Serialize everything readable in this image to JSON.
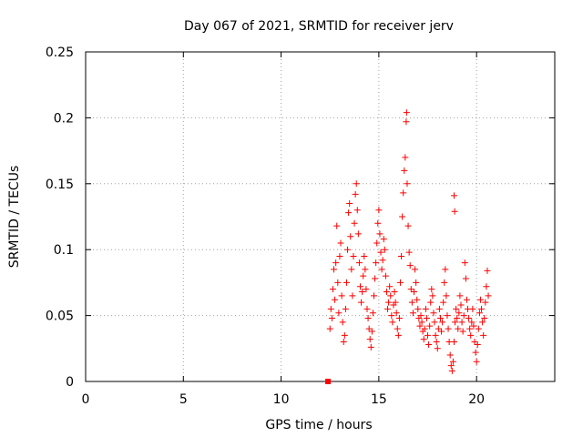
{
  "chart_data": {
    "type": "scatter",
    "title": "Day 067 of 2021, SRMTID for receiver jerv",
    "xlabel": "GPS time / hours",
    "ylabel": "SRMTID / TECUs",
    "xlim": [
      0,
      24
    ],
    "ylim": [
      0,
      0.25
    ],
    "xticks": [
      0,
      5,
      10,
      15,
      20
    ],
    "xtick_labels": [
      "0",
      "5",
      "10",
      "15",
      "20"
    ],
    "yticks": [
      0,
      0.05,
      0.1,
      0.15,
      0.2,
      0.25
    ],
    "ytick_labels": [
      "0",
      "0.05",
      "0.1",
      "0.15",
      "0.2",
      "0.25"
    ],
    "grid": true,
    "marker": "plus",
    "color": "#ff0000",
    "series": [
      {
        "marker": "plus",
        "points": [
          [
            12.5,
            0.04
          ],
          [
            12.55,
            0.055
          ],
          [
            12.6,
            0.048
          ],
          [
            12.65,
            0.07
          ],
          [
            12.7,
            0.085
          ],
          [
            12.75,
            0.062
          ],
          [
            12.8,
            0.09
          ],
          [
            12.85,
            0.118
          ],
          [
            12.9,
            0.075
          ],
          [
            12.95,
            0.052
          ],
          [
            13.0,
            0.095
          ],
          [
            13.05,
            0.105
          ],
          [
            13.1,
            0.065
          ],
          [
            13.15,
            0.045
          ],
          [
            13.2,
            0.03
          ],
          [
            13.25,
            0.035
          ],
          [
            13.3,
            0.055
          ],
          [
            13.35,
            0.075
          ],
          [
            13.4,
            0.1
          ],
          [
            13.45,
            0.128
          ],
          [
            13.5,
            0.135
          ],
          [
            13.55,
            0.11
          ],
          [
            13.6,
            0.085
          ],
          [
            13.65,
            0.065
          ],
          [
            13.7,
            0.095
          ],
          [
            13.75,
            0.12
          ],
          [
            13.8,
            0.142
          ],
          [
            13.85,
            0.15
          ],
          [
            13.9,
            0.13
          ],
          [
            13.95,
            0.112
          ],
          [
            14.0,
            0.09
          ],
          [
            14.05,
            0.072
          ],
          [
            14.1,
            0.06
          ],
          [
            14.15,
            0.068
          ],
          [
            14.2,
            0.08
          ],
          [
            14.25,
            0.095
          ],
          [
            14.3,
            0.085
          ],
          [
            14.35,
            0.07
          ],
          [
            14.4,
            0.055
          ],
          [
            14.45,
            0.048
          ],
          [
            14.5,
            0.04
          ],
          [
            14.55,
            0.032
          ],
          [
            14.6,
            0.026
          ],
          [
            14.65,
            0.038
          ],
          [
            14.7,
            0.052
          ],
          [
            14.75,
            0.065
          ],
          [
            14.8,
            0.078
          ],
          [
            14.85,
            0.09
          ],
          [
            14.9,
            0.105
          ],
          [
            14.95,
            0.12
          ],
          [
            15.0,
            0.13
          ],
          [
            15.05,
            0.112
          ],
          [
            15.1,
            0.098
          ],
          [
            15.15,
            0.085
          ],
          [
            15.2,
            0.092
          ],
          [
            15.25,
            0.108
          ],
          [
            15.3,
            0.1
          ],
          [
            15.35,
            0.08
          ],
          [
            15.4,
            0.068
          ],
          [
            15.45,
            0.055
          ],
          [
            15.5,
            0.06
          ],
          [
            15.55,
            0.072
          ],
          [
            15.6,
            0.065
          ],
          [
            15.65,
            0.05
          ],
          [
            15.7,
            0.045
          ],
          [
            15.75,
            0.058
          ],
          [
            15.8,
            0.068
          ],
          [
            15.85,
            0.06
          ],
          [
            15.9,
            0.052
          ],
          [
            15.95,
            0.04
          ],
          [
            16.0,
            0.035
          ],
          [
            16.05,
            0.048
          ],
          [
            16.1,
            0.075
          ],
          [
            16.15,
            0.095
          ],
          [
            16.2,
            0.125
          ],
          [
            16.25,
            0.143
          ],
          [
            16.3,
            0.16
          ],
          [
            16.35,
            0.17
          ],
          [
            16.4,
            0.197
          ],
          [
            16.42,
            0.204
          ],
          [
            16.45,
            0.15
          ],
          [
            16.5,
            0.118
          ],
          [
            16.55,
            0.098
          ],
          [
            16.6,
            0.088
          ],
          [
            16.65,
            0.07
          ],
          [
            16.7,
            0.06
          ],
          [
            16.75,
            0.052
          ],
          [
            16.8,
            0.068
          ],
          [
            16.85,
            0.085
          ],
          [
            16.9,
            0.075
          ],
          [
            16.95,
            0.062
          ],
          [
            17.0,
            0.055
          ],
          [
            17.05,
            0.048
          ],
          [
            17.1,
            0.042
          ],
          [
            17.15,
            0.05
          ],
          [
            17.2,
            0.045
          ],
          [
            17.25,
            0.038
          ],
          [
            17.3,
            0.032
          ],
          [
            17.35,
            0.04
          ],
          [
            17.4,
            0.055
          ],
          [
            17.45,
            0.048
          ],
          [
            17.5,
            0.035
          ],
          [
            17.55,
            0.028
          ],
          [
            17.6,
            0.042
          ],
          [
            17.65,
            0.06
          ],
          [
            17.7,
            0.07
          ],
          [
            17.75,
            0.065
          ],
          [
            17.8,
            0.052
          ],
          [
            17.85,
            0.045
          ],
          [
            17.9,
            0.035
          ],
          [
            17.95,
            0.03
          ],
          [
            18.0,
            0.025
          ],
          [
            18.05,
            0.04
          ],
          [
            18.1,
            0.055
          ],
          [
            18.15,
            0.048
          ],
          [
            18.2,
            0.038
          ],
          [
            18.25,
            0.045
          ],
          [
            18.3,
            0.06
          ],
          [
            18.35,
            0.075
          ],
          [
            18.4,
            0.085
          ],
          [
            18.45,
            0.065
          ],
          [
            18.5,
            0.05
          ],
          [
            18.55,
            0.04
          ],
          [
            18.6,
            0.03
          ],
          [
            18.65,
            0.02
          ],
          [
            18.7,
            0.012
          ],
          [
            18.75,
            0.008
          ],
          [
            18.8,
            0.015
          ],
          [
            18.85,
            0.03
          ],
          [
            18.9,
            0.045
          ],
          [
            18.95,
            0.055
          ],
          [
            19.0,
            0.048
          ],
          [
            19.05,
            0.04
          ],
          [
            19.1,
            0.052
          ],
          [
            19.15,
            0.065
          ],
          [
            19.2,
            0.058
          ],
          [
            19.25,
            0.045
          ],
          [
            19.3,
            0.038
          ],
          [
            19.35,
            0.05
          ],
          [
            19.4,
            0.09
          ],
          [
            19.45,
            0.078
          ],
          [
            19.5,
            0.062
          ],
          [
            19.55,
            0.055
          ],
          [
            19.6,
            0.048
          ],
          [
            19.65,
            0.04
          ],
          [
            19.7,
            0.035
          ],
          [
            19.75,
            0.045
          ],
          [
            19.8,
            0.055
          ],
          [
            19.85,
            0.042
          ],
          [
            19.9,
            0.03
          ],
          [
            19.95,
            0.022
          ],
          [
            20.0,
            0.015
          ],
          [
            20.05,
            0.028
          ],
          [
            20.1,
            0.04
          ],
          [
            20.15,
            0.052
          ],
          [
            20.2,
            0.062
          ],
          [
            20.25,
            0.055
          ],
          [
            20.3,
            0.045
          ],
          [
            20.35,
            0.035
          ],
          [
            20.4,
            0.048
          ],
          [
            20.45,
            0.06
          ],
          [
            20.5,
            0.072
          ],
          [
            20.55,
            0.084
          ],
          [
            20.6,
            0.065
          ],
          [
            18.85,
            0.141
          ],
          [
            18.88,
            0.129
          ]
        ]
      },
      {
        "marker": "square",
        "points": [
          [
            12.4,
            0.0
          ]
        ]
      }
    ]
  }
}
